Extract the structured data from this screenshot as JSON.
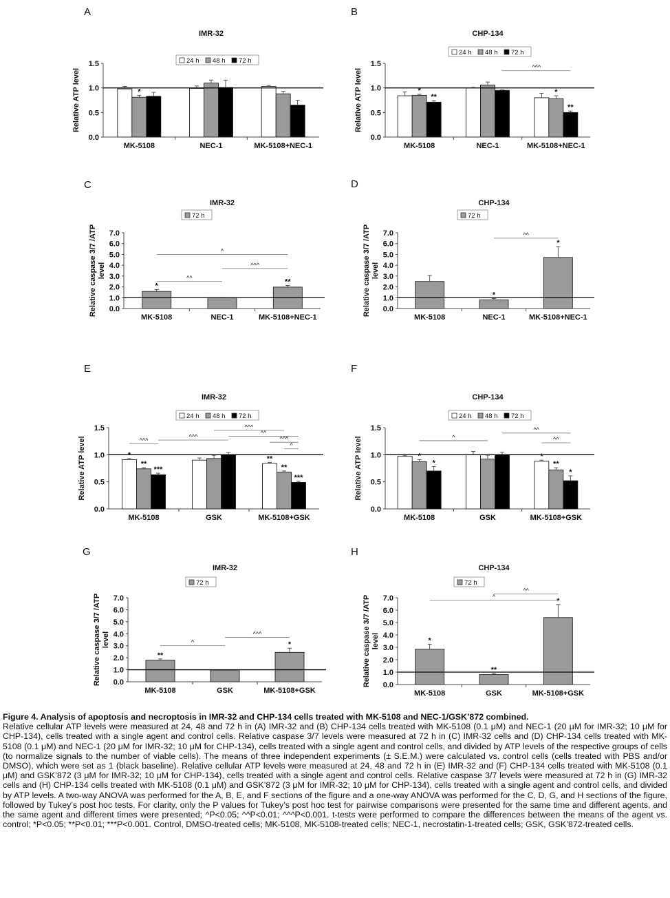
{
  "figure": {
    "legend_labels": {
      "h24": "24 h",
      "h48": "48 h",
      "h72": "72 h"
    },
    "panels": [
      {
        "id": "A",
        "title": "IMR-32",
        "ylabel": "Relative ATP level",
        "ylim": [
          0,
          1.5
        ],
        "yticks": [
          "0.0",
          "0.5",
          "1.0",
          "1.5"
        ],
        "legend": [
          "24 h",
          "48 h",
          "72 h"
        ],
        "chart_data": {
          "type": "bar",
          "categories": [
            "MK-5108",
            "NEC-1",
            "MK-5108+NEC-1"
          ],
          "series": [
            {
              "name": "24 h",
              "color": "#ffffff",
              "values": [
                0.98,
                0.99,
                1.03
              ],
              "errors": [
                0.05,
                0.05,
                0.02
              ],
              "marks": [
                "",
                "",
                ""
              ]
            },
            {
              "name": "48 h",
              "color": "#9a9a9a",
              "values": [
                0.81,
                1.1,
                0.88
              ],
              "errors": [
                0.04,
                0.06,
                0.05
              ],
              "marks": [
                "*",
                "",
                ""
              ]
            },
            {
              "name": "72 h",
              "color": "#000000",
              "values": [
                0.83,
                1.01,
                0.65
              ],
              "errors": [
                0.08,
                0.15,
                0.1
              ],
              "marks": [
                "",
                "",
                ""
              ]
            }
          ],
          "baseline": 1.0,
          "brackets": []
        }
      },
      {
        "id": "B",
        "title": "CHP-134",
        "ylabel": "Relative ATP level",
        "ylim": [
          0,
          1.5
        ],
        "yticks": [
          "0.0",
          "0.5",
          "1.0",
          "1.5"
        ],
        "legend": [
          "24 h",
          "48 h",
          "72 h"
        ],
        "chart_data": {
          "type": "bar",
          "categories": [
            "MK-5108",
            "NEC-1",
            "MK-5108+NEC-1"
          ],
          "series": [
            {
              "name": "24 h",
              "color": "#ffffff",
              "values": [
                0.84,
                1.0,
                0.8
              ],
              "errors": [
                0.08,
                0.01,
                0.09
              ],
              "marks": [
                "",
                "",
                ""
              ]
            },
            {
              "name": "48 h",
              "color": "#9a9a9a",
              "values": [
                0.85,
                1.06,
                0.78
              ],
              "errors": [
                0.02,
                0.06,
                0.06
              ],
              "marks": [
                "*",
                "",
                "*"
              ]
            },
            {
              "name": "72 h",
              "color": "#000000",
              "values": [
                0.71,
                0.95,
                0.5
              ],
              "errors": [
                0.03,
                0.01,
                0.03
              ],
              "marks": [
                "**",
                "",
                "**"
              ]
            }
          ],
          "baseline": 1.0,
          "brackets": [
            {
              "from": [
                1,
                2
              ],
              "to": [
                2,
                2
              ],
              "y": 1.35,
              "label": "^^^"
            }
          ]
        }
      },
      {
        "id": "C",
        "title": "IMR-32",
        "ylabel": "Relative caspase 3/7 /ATP level",
        "ylim": [
          0,
          7
        ],
        "yticks": [
          "0.0",
          "1.0",
          "2.0",
          "3.0",
          "4.0",
          "5.0",
          "6.0",
          "7.0"
        ],
        "legend": [
          "72 h"
        ],
        "chart_data": {
          "type": "bar",
          "categories": [
            "MK-5108",
            "NEC-1",
            "MK-5108+NEC-1"
          ],
          "series": [
            {
              "name": "72 h",
              "color": "#9a9a9a",
              "values": [
                1.58,
                1.0,
                1.98
              ],
              "errors": [
                0.18,
                0.02,
                0.15
              ],
              "marks": [
                "*",
                "",
                "**"
              ]
            }
          ],
          "baseline": 1.0,
          "brackets": [
            {
              "from": [
                0,
                0
              ],
              "to": [
                1,
                0
              ],
              "y": 2.5,
              "label": "^^"
            },
            {
              "from": [
                1,
                0
              ],
              "to": [
                2,
                0
              ],
              "y": 3.7,
              "label": "^^^"
            },
            {
              "from": [
                0,
                0
              ],
              "to": [
                2,
                0
              ],
              "y": 5.0,
              "label": "^"
            }
          ]
        }
      },
      {
        "id": "D",
        "title": "CHP-134",
        "ylabel": "Relative caspase 3/7 /ATP level",
        "ylim": [
          0,
          7
        ],
        "yticks": [
          "0.0",
          "1.0",
          "2.0",
          "3.0",
          "4.0",
          "5.0",
          "6.0",
          "7.0"
        ],
        "legend": [
          "72 h"
        ],
        "chart_data": {
          "type": "bar",
          "categories": [
            "MK-5108",
            "NEC-1",
            "MK-5108+NEC-1"
          ],
          "series": [
            {
              "name": "72 h",
              "color": "#9a9a9a",
              "values": [
                2.5,
                0.8,
                4.72
              ],
              "errors": [
                0.55,
                0.12,
                1.0
              ],
              "marks": [
                "",
                "*",
                "*"
              ]
            }
          ],
          "baseline": 1.0,
          "brackets": [
            {
              "from": [
                1,
                0
              ],
              "to": [
                2,
                0
              ],
              "y": 6.5,
              "label": "^^"
            }
          ]
        }
      },
      {
        "id": "E",
        "title": "IMR-32",
        "ylabel": "Relative ATP level",
        "ylim": [
          0,
          1.5
        ],
        "yticks": [
          "0.0",
          "0.5",
          "1.0",
          "1.5"
        ],
        "legend": [
          "24 h",
          "48 h",
          "72 h"
        ],
        "chart_data": {
          "type": "bar",
          "categories": [
            "MK-5108",
            "GSK",
            "MK-5108+GSK"
          ],
          "series": [
            {
              "name": "24 h",
              "color": "#ffffff",
              "values": [
                0.91,
                0.9,
                0.84
              ],
              "errors": [
                0.02,
                0.04,
                0.02
              ],
              "marks": [
                "*",
                "",
                "**"
              ]
            },
            {
              "name": "48 h",
              "color": "#9a9a9a",
              "values": [
                0.74,
                0.93,
                0.68
              ],
              "errors": [
                0.02,
                0.06,
                0.02
              ],
              "marks": [
                "**",
                "",
                "**"
              ]
            },
            {
              "name": "72 h",
              "color": "#000000",
              "values": [
                0.63,
                1.0,
                0.49
              ],
              "errors": [
                0.03,
                0.04,
                0.02
              ],
              "marks": [
                "***",
                "",
                "***"
              ]
            }
          ],
          "baseline": 1.0,
          "brackets": [
            {
              "from": [
                0,
                0
              ],
              "to": [
                0,
                2
              ],
              "y": 1.2,
              "label": "^^^"
            },
            {
              "from": [
                0,
                2
              ],
              "to": [
                1,
                2
              ],
              "y": 1.27,
              "label": "^^^"
            },
            {
              "from": [
                1,
                2
              ],
              "to": [
                2,
                2
              ],
              "y": 1.34,
              "label": "^^"
            },
            {
              "from": [
                1,
                1
              ],
              "to": [
                2,
                1
              ],
              "y": 1.45,
              "label": "^^^"
            },
            {
              "from": [
                2,
                0
              ],
              "to": [
                2,
                2
              ],
              "y": 1.23,
              "label": "^^^"
            },
            {
              "from": [
                2,
                1
              ],
              "to": [
                2,
                2
              ],
              "y": 1.11,
              "label": "^"
            }
          ]
        }
      },
      {
        "id": "F",
        "title": "CHP-134",
        "ylabel": "Relative ATP level",
        "ylim": [
          0,
          1.5
        ],
        "yticks": [
          "0.0",
          "0.5",
          "1.0",
          "1.5"
        ],
        "legend": [
          "24 h",
          "48 h",
          "72 h"
        ],
        "chart_data": {
          "type": "bar",
          "categories": [
            "MK-5108",
            "GSK",
            "MK-5108+GSK"
          ],
          "series": [
            {
              "name": "24 h",
              "color": "#ffffff",
              "values": [
                0.97,
                1.0,
                0.88
              ],
              "errors": [
                0.02,
                0.06,
                0.02
              ],
              "marks": [
                "",
                "",
                "*"
              ]
            },
            {
              "name": "48 h",
              "color": "#9a9a9a",
              "values": [
                0.87,
                0.92,
                0.72
              ],
              "errors": [
                0.04,
                0.07,
                0.04
              ],
              "marks": [
                "*",
                "",
                "**"
              ]
            },
            {
              "name": "72 h",
              "color": "#000000",
              "values": [
                0.7,
                1.0,
                0.52
              ],
              "errors": [
                0.08,
                0.05,
                0.09
              ],
              "marks": [
                "*",
                "",
                "*"
              ]
            }
          ],
          "baseline": 1.0,
          "brackets": [
            {
              "from": [
                0,
                1
              ],
              "to": [
                1,
                1
              ],
              "y": 1.26,
              "label": "^"
            },
            {
              "from": [
                1,
                2
              ],
              "to": [
                2,
                2
              ],
              "y": 1.4,
              "label": "^^"
            },
            {
              "from": [
                2,
                0
              ],
              "to": [
                2,
                2
              ],
              "y": 1.22,
              "label": "^^"
            }
          ]
        }
      },
      {
        "id": "G",
        "title": "IMR-32",
        "ylabel": "Relative caspase 3/7 /ATP level",
        "ylim": [
          0,
          7
        ],
        "yticks": [
          "0.0",
          "1.0",
          "2.0",
          "3.0",
          "4.0",
          "5.0",
          "6.0",
          "7.0"
        ],
        "legend": [
          "72 h"
        ],
        "chart_data": {
          "type": "bar",
          "categories": [
            "MK-5108",
            "GSK",
            "MK-5108+GSK"
          ],
          "series": [
            {
              "name": "72 h",
              "color": "#9a9a9a",
              "values": [
                1.8,
                0.98,
                2.45
              ],
              "errors": [
                0.1,
                0.02,
                0.35
              ],
              "marks": [
                "**",
                "",
                "*"
              ]
            }
          ],
          "baseline": 1.0,
          "brackets": [
            {
              "from": [
                0,
                0
              ],
              "to": [
                1,
                0
              ],
              "y": 3.0,
              "label": "^"
            },
            {
              "from": [
                1,
                0
              ],
              "to": [
                2,
                0
              ],
              "y": 3.7,
              "label": "^^^"
            }
          ]
        }
      },
      {
        "id": "H",
        "title": "CHP-134",
        "ylabel": "Relative caspase 3/7 /ATP level",
        "ylim": [
          0,
          7
        ],
        "yticks": [
          "0.0",
          "1.0",
          "2.0",
          "3.0",
          "4.0",
          "5.0",
          "6.0",
          "7.0"
        ],
        "legend": [
          "72 h"
        ],
        "chart_data": {
          "type": "bar",
          "categories": [
            "MK-5108",
            "GSK",
            "MK-5108+GSK"
          ],
          "series": [
            {
              "name": "72 h",
              "color": "#9a9a9a",
              "values": [
                2.85,
                0.8,
                5.4
              ],
              "errors": [
                0.4,
                0.08,
                1.05
              ],
              "marks": [
                "*",
                "**",
                "*"
              ]
            }
          ],
          "baseline": 1.0,
          "brackets": [
            {
              "from": [
                0,
                0
              ],
              "to": [
                2,
                0
              ],
              "y": 6.8,
              "label": "^"
            },
            {
              "from": [
                1,
                0
              ],
              "to": [
                2,
                0
              ],
              "y": 7.3,
              "label": "^^"
            }
          ]
        }
      }
    ]
  },
  "caption": {
    "title": "Figure 4. Analysis of apoptosis and necroptosis in IMR-32 and CHP-134 cells treated with MK-5108 and NEC-1/GSK’872 combined.",
    "body": "Relative cellular ATP levels were measured at 24, 48 and 72 h in (A) IMR-32 and (B) CHP-134 cells treated with MK-5108 (0.1 μM) and NEC-1 (20 μM for IMR-32; 10 μM for CHP-134), cells treated with a single agent and control cells. Relative caspase 3/7 levels were measured at 72 h in (C) IMR-32 cells and (D) CHP-134 cells treated with MK-5108 (0.1 μM) and NEC-1 (20 μM for IMR-32; 10 μM for CHP-134), cells treated with a single agent and control cells, and divided by ATP levels of the respective groups of cells (to normalize signals to the number of viable cells). The means of three independent experiments (± S.E.M.) were calculated vs. control cells (cells treated with PBS and/or DMSO), which were set as 1 (black baseline). Relative cellular ATP levels were measured at 24, 48 and 72 h in (E) IMR-32 and (F) CHP-134 cells treated with MK-5108 (0.1 μM) and GSK’872 (3 μM for IMR-32; 10 μM for CHP-134), cells treated with a single agent and control cells. Relative caspase 3/7 levels were measured at 72 h in (G) IMR-32 cells and (H) CHP-134 cells treated with MK-5108 (0.1 μM) and GSK’872 (3 μM for IMR-32; 10 μM for CHP-134), cells treated with a single agent and control cells, and divided by ATP levels. A two-way ANOVA was performed for the A, B, E, and F sections of the figure and a one-way ANOVA was performed for the C, D, G, and H sections of the figure, followed by Tukey’s post hoc tests. For clarity, only the P values for Tukey’s post hoc test for pairwise comparisons were presented for the same time and different agents, and the same agent and different times were presented; ^P<0.05; ^^P<0.01; ^^^P<0.001. t-tests were performed to compare the differences between the means of the agent vs. control; *P<0.05; **P<0.01; ***P<0.001. Control, DMSO-treated cells; MK-5108, MK-5108-treated cells; NEC-1, necrostatin-1-treated cells; GSK, GSK’872-treated cells."
  }
}
